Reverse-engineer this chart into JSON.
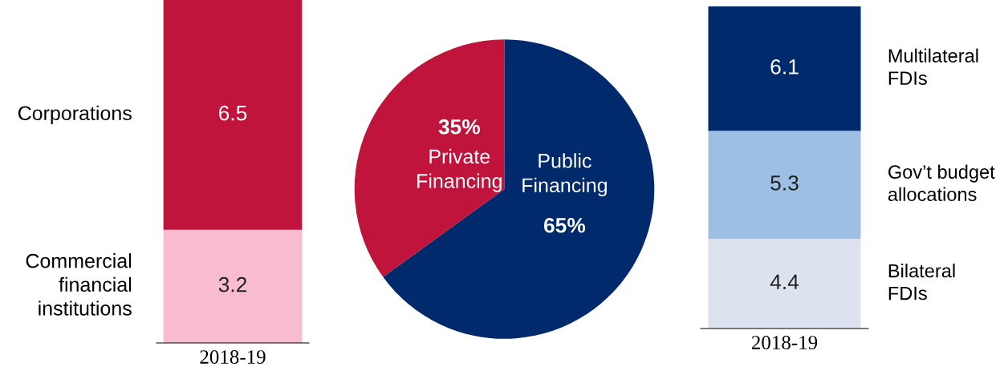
{
  "chart_data": [
    {
      "type": "bar",
      "stacked": true,
      "categories": [
        "2018-19"
      ],
      "data_labels": true,
      "legend": false,
      "series": [
        {
          "name": "Commercial\nfinancial\ninstitutions",
          "color": "#f9bccf",
          "values": [
            3.2
          ]
        },
        {
          "name": "Corporations",
          "color": "#c0143c",
          "values": [
            6.5
          ]
        }
      ]
    },
    {
      "type": "pie",
      "categories": [
        "Private\nFinancing",
        "Public\nFinancing"
      ],
      "values": [
        35,
        65
      ],
      "colors": [
        "#c0143c",
        "#002a6c"
      ],
      "value_labels": [
        "35%",
        "65%"
      ]
    },
    {
      "type": "bar",
      "stacked": true,
      "categories": [
        "2018-19"
      ],
      "data_labels": true,
      "legend": false,
      "series": [
        {
          "name": "Bilateral\nFDIs",
          "color": "#dde3ee",
          "values": [
            4.4
          ]
        },
        {
          "name": "Gov’t budget\nallocations",
          "color": "#9dbfe3",
          "values": [
            5.3
          ]
        },
        {
          "name": "Multilateral\nFDIs",
          "color": "#002a6c",
          "values": [
            6.1
          ]
        }
      ]
    }
  ]
}
